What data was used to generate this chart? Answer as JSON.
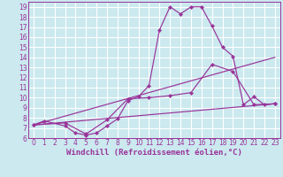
{
  "xlabel": "Windchill (Refroidissement éolien,°C)",
  "background_color": "#cbe9ef",
  "grid_color": "#ffffff",
  "line_color": "#993399",
  "xlim": [
    -0.5,
    23.5
  ],
  "ylim": [
    6,
    19.5
  ],
  "xticks": [
    0,
    1,
    2,
    3,
    4,
    5,
    6,
    7,
    8,
    9,
    10,
    11,
    12,
    13,
    14,
    15,
    16,
    17,
    18,
    19,
    20,
    21,
    22,
    23
  ],
  "yticks": [
    6,
    7,
    8,
    9,
    10,
    11,
    12,
    13,
    14,
    15,
    16,
    17,
    18,
    19
  ],
  "line1_x": [
    0,
    1,
    3,
    4,
    5,
    6,
    7,
    8,
    9,
    10,
    11,
    12,
    13,
    14,
    15,
    16,
    17,
    18,
    19,
    20,
    21,
    22,
    23
  ],
  "line1_y": [
    7.3,
    7.7,
    7.2,
    6.5,
    6.3,
    6.5,
    7.2,
    7.9,
    9.7,
    10.1,
    11.2,
    16.7,
    19.0,
    18.3,
    19.0,
    19.0,
    17.1,
    15.0,
    14.1,
    9.3,
    10.1,
    9.3,
    9.4
  ],
  "line2_x": [
    0,
    3,
    5,
    7,
    9,
    11,
    13,
    15,
    17,
    19,
    21,
    23
  ],
  "line2_y": [
    7.3,
    7.5,
    6.4,
    7.8,
    9.9,
    10.0,
    10.2,
    10.5,
    13.3,
    12.6,
    9.3,
    9.4
  ],
  "line3_x": [
    0,
    23
  ],
  "line3_y": [
    7.3,
    14.0
  ],
  "line4_x": [
    0,
    23
  ],
  "line4_y": [
    7.3,
    9.4
  ],
  "tick_fontsize": 5.5,
  "xlabel_fontsize": 6.5
}
